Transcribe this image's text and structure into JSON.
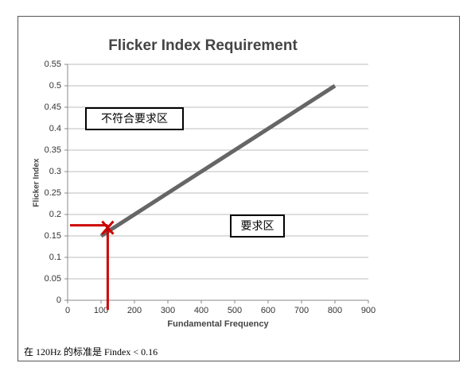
{
  "chart_data": {
    "type": "line",
    "title": "Flicker Index Requirement",
    "xlabel": "Fundamental Frequency",
    "ylabel": "Flicker Index",
    "series": [
      {
        "color": "#666666",
        "x": [
          100,
          800
        ],
        "values": [
          0.15,
          0.5
        ]
      },
      {
        "color": "#cc0000",
        "x": [
          120
        ],
        "values": [
          0.16
        ]
      }
    ],
    "xlim": [
      0,
      900
    ],
    "xticks": [
      0,
      100,
      200,
      300,
      400,
      500,
      600,
      700,
      800,
      900
    ],
    "ylim": [
      0,
      0.55
    ],
    "yticks": [
      0,
      0.05,
      0.1,
      0.15,
      0.2,
      0.25,
      0.3,
      0.35,
      0.4,
      0.45,
      0.5,
      0.55
    ],
    "grid": true,
    "annotations": [
      "不符合要求区",
      "要求区"
    ],
    "caption": "在 120Hz 的标准是  Findex < 0.16"
  }
}
